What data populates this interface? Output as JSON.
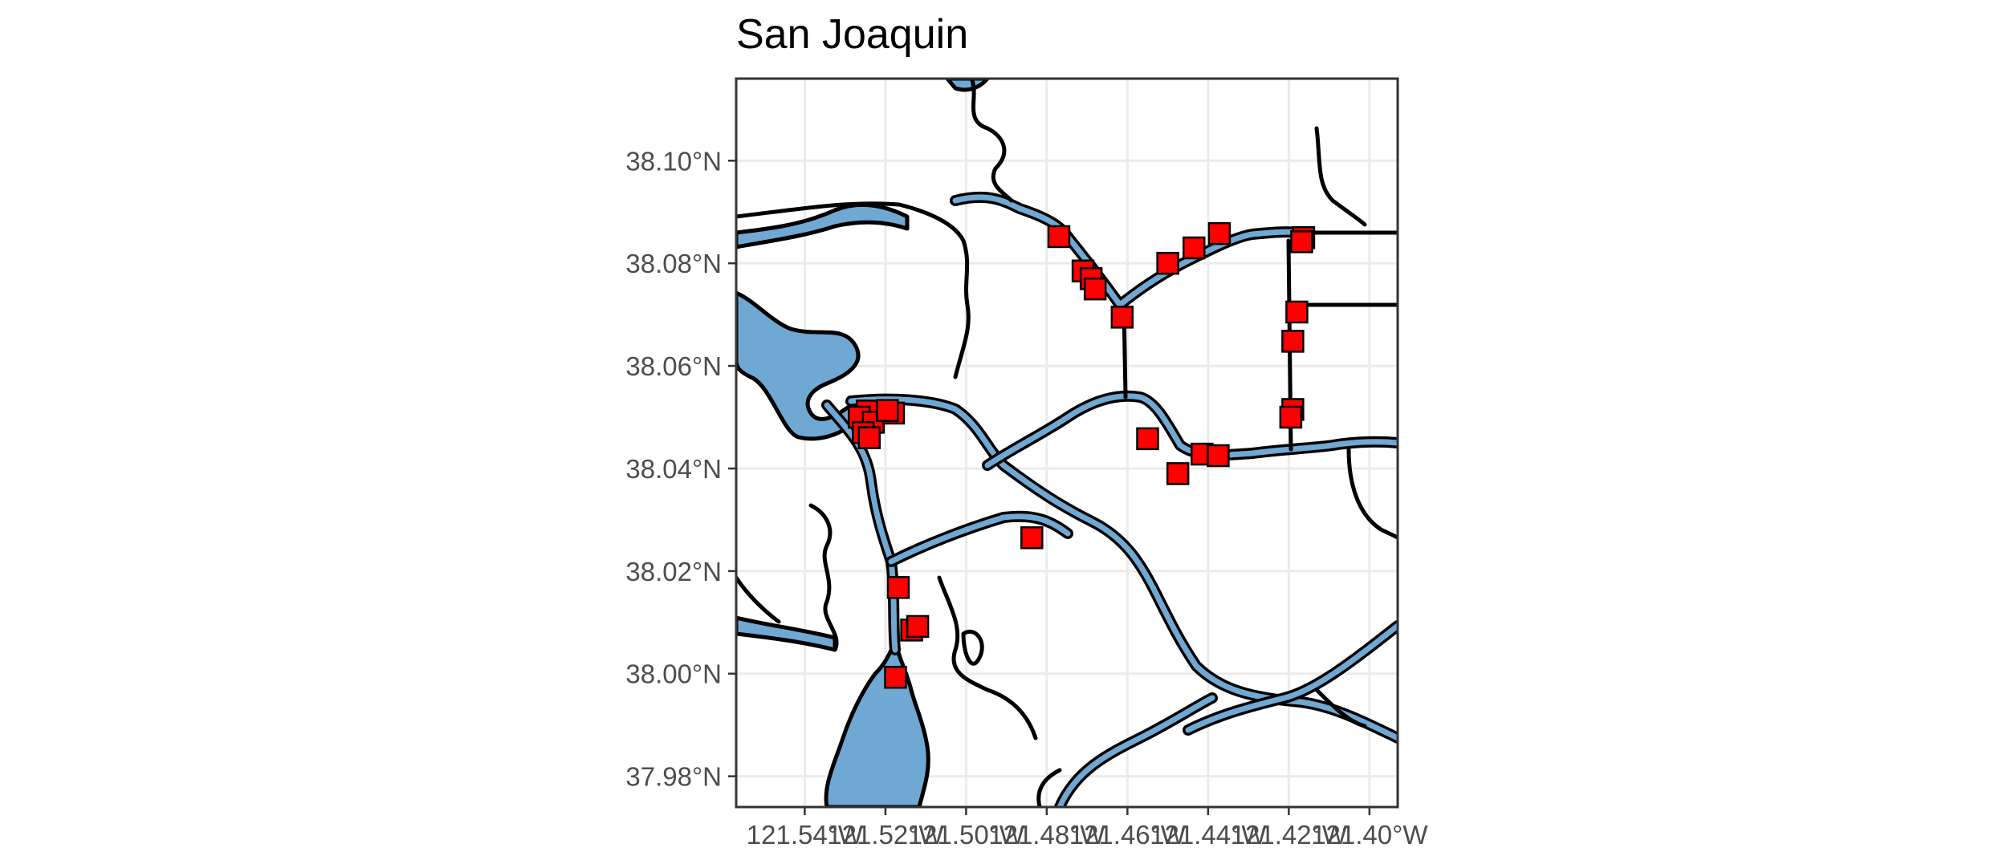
{
  "title": "San Joaquin",
  "colors": {
    "water": "#6fa8d3",
    "site_marker": "#ff0000",
    "outline": "#000000",
    "grid": "#ebebeb",
    "background": "#ffffff"
  },
  "axes": {
    "x": {
      "range": [
        -121.557,
        -121.393
      ],
      "ticks": [
        -121.54,
        -121.52,
        -121.5,
        -121.48,
        -121.46,
        -121.44,
        -121.42,
        -121.4
      ],
      "labels": [
        "121.54°W",
        "121.52°W",
        "121.50°W",
        "121.48°W",
        "121.46°W",
        "121.44°W",
        "121.42°W",
        "121.40°W"
      ]
    },
    "y": {
      "range": [
        37.974,
        38.116
      ],
      "ticks": [
        37.98,
        38.0,
        38.02,
        38.04,
        38.06,
        38.08,
        38.1
      ],
      "labels": [
        "37.98°N",
        "38.00°N",
        "38.02°N",
        "38.04°N",
        "38.06°N",
        "38.08°N",
        "38.10°N"
      ]
    }
  },
  "sites": [
    {
      "lon": -121.5245,
      "lat": 38.0512
    },
    {
      "lon": -121.5265,
      "lat": 38.05
    },
    {
      "lon": -121.523,
      "lat": 38.049
    },
    {
      "lon": -121.5255,
      "lat": 38.047
    },
    {
      "lon": -121.524,
      "lat": 38.046
    },
    {
      "lon": -121.518,
      "lat": 38.0508
    },
    {
      "lon": -121.5195,
      "lat": 38.0513
    },
    {
      "lon": -121.5168,
      "lat": 38.0168
    },
    {
      "lon": -121.5135,
      "lat": 38.0085
    },
    {
      "lon": -121.512,
      "lat": 38.0092
    },
    {
      "lon": -121.5175,
      "lat": 37.9993
    },
    {
      "lon": -121.4837,
      "lat": 38.0265
    },
    {
      "lon": -121.477,
      "lat": 38.0852
    },
    {
      "lon": -121.471,
      "lat": 38.0785
    },
    {
      "lon": -121.469,
      "lat": 38.077
    },
    {
      "lon": -121.468,
      "lat": 38.075
    },
    {
      "lon": -121.4613,
      "lat": 38.0695
    },
    {
      "lon": -121.45,
      "lat": 38.08
    },
    {
      "lon": -121.4435,
      "lat": 38.083
    },
    {
      "lon": -121.4372,
      "lat": 38.0858
    },
    {
      "lon": -121.4163,
      "lat": 38.085
    },
    {
      "lon": -121.4168,
      "lat": 38.0842
    },
    {
      "lon": -121.418,
      "lat": 38.0705
    },
    {
      "lon": -121.419,
      "lat": 38.0648
    },
    {
      "lon": -121.419,
      "lat": 38.0515
    },
    {
      "lon": -121.4195,
      "lat": 38.05
    },
    {
      "lon": -121.455,
      "lat": 38.0458
    },
    {
      "lon": -121.4475,
      "lat": 38.039
    },
    {
      "lon": -121.4415,
      "lat": 38.0428
    },
    {
      "lon": -121.4375,
      "lat": 38.0425
    }
  ]
}
